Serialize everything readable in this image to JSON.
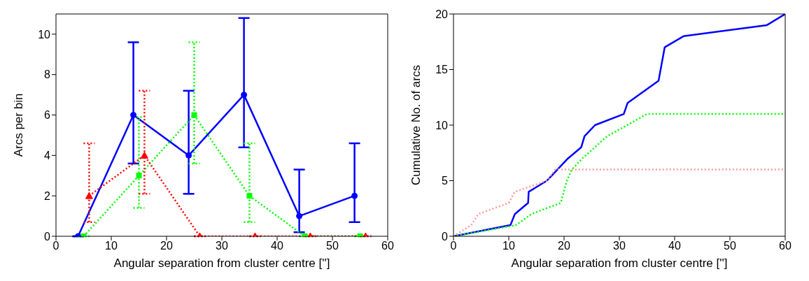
{
  "chart_data": [
    {
      "type": "line",
      "xlabel": "Angular separation from cluster centre ['']",
      "ylabel": "Arcs per bin",
      "xlim": [
        0,
        60
      ],
      "xticks": [
        0,
        10,
        20,
        30,
        40,
        50,
        60
      ],
      "ylim": [
        0,
        11
      ],
      "yticks": [
        0,
        2,
        4,
        6,
        8,
        10
      ],
      "series": [
        {
          "color": "#0000ff",
          "marker": "circle",
          "line_style": "solid",
          "x": [
            4,
            14,
            24,
            34,
            44,
            54
          ],
          "values": [
            0,
            6,
            4,
            7,
            1,
            2
          ],
          "errors": [
            null,
            [
              3.6,
              9.6
            ],
            [
              2.1,
              7.2
            ],
            [
              4.4,
              10.8
            ],
            [
              0.2,
              3.3
            ],
            [
              0.7,
              4.6
            ]
          ]
        },
        {
          "color": "#00ff00",
          "marker": "square",
          "line_style": "dotted",
          "x": [
            5,
            15,
            25,
            35,
            45,
            55
          ],
          "values": [
            0,
            3,
            6,
            2,
            0,
            0
          ],
          "errors": [
            null,
            [
              1.4,
              5.9
            ],
            [
              3.6,
              9.6
            ],
            [
              0.7,
              4.6
            ],
            null,
            null
          ]
        },
        {
          "color": "#ff0000",
          "marker": "triangle",
          "line_style": "dotted",
          "x": [
            6,
            16,
            26,
            36,
            46,
            56
          ],
          "values": [
            2,
            4,
            0,
            0,
            0,
            0
          ],
          "errors": [
            [
              0.7,
              4.6
            ],
            [
              2.1,
              7.2
            ],
            null,
            null,
            null,
            null
          ]
        }
      ]
    },
    {
      "type": "line",
      "xlabel": "Angular separation from cluster centre ['']",
      "ylabel": "Cumulative No. of arcs",
      "xlim": [
        0,
        60
      ],
      "xticks": [
        0,
        10,
        20,
        30,
        40,
        50,
        60
      ],
      "ylim": [
        0,
        20
      ],
      "yticks": [
        0,
        5,
        10,
        15,
        20
      ],
      "series": [
        {
          "color": "#0000ff",
          "marker": "none",
          "line_style": "solid",
          "x": [
            0,
            10.3,
            11.1,
            13.5,
            13.6,
            16.9,
            18.8,
            20.7,
            23.1,
            23.7,
            25.6,
            30.8,
            31.5,
            37.1,
            38.2,
            41.6,
            56.7,
            60
          ],
          "values": [
            0,
            1,
            2,
            3,
            4,
            5,
            6,
            7,
            8,
            9,
            10,
            11,
            12,
            14,
            17,
            18,
            19,
            20
          ]
        },
        {
          "color": "#00ff00",
          "marker": "none",
          "line_style": "dotted",
          "x": [
            0,
            11.3,
            14.1,
            19.4,
            20.5,
            21.4,
            23.3,
            27.8,
            35,
            60
          ],
          "values": [
            0,
            1,
            2,
            3,
            5,
            6,
            7,
            9,
            11,
            11
          ]
        },
        {
          "color": "#ff9999",
          "marker": "none",
          "line_style": "dotted",
          "x": [
            0,
            3.2,
            4.5,
            10,
            11.1,
            16.9,
            18.4,
            60
          ],
          "values": [
            0,
            1,
            2,
            3,
            4,
            5,
            6,
            6
          ]
        }
      ]
    }
  ]
}
